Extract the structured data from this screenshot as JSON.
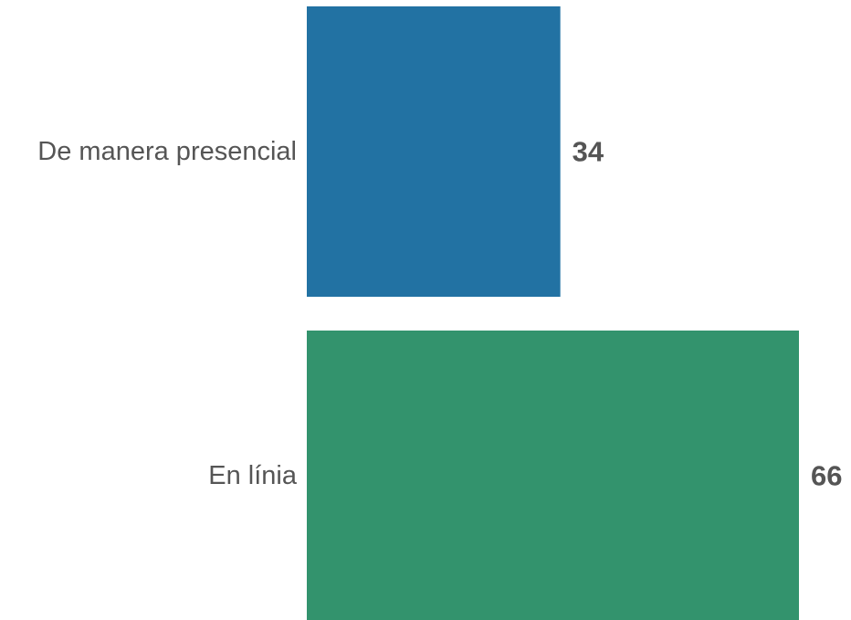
{
  "chart_data": {
    "type": "bar",
    "orientation": "horizontal",
    "categories": [
      "De manera presencial",
      "En línia"
    ],
    "values": [
      34,
      66
    ],
    "colors": [
      "#2272a3",
      "#33936d"
    ],
    "xlim": [
      0,
      66
    ],
    "grid": false,
    "legend": "none"
  }
}
